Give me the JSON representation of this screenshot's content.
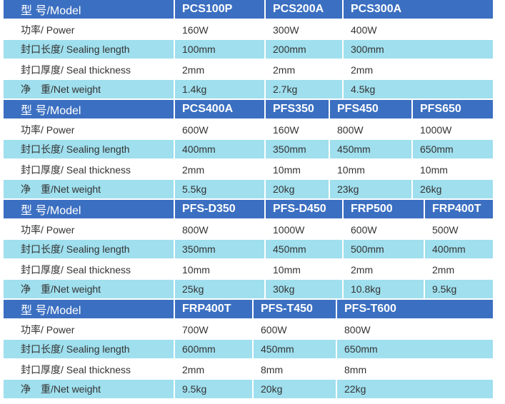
{
  "row_labels": {
    "model": "型 号/Model",
    "power": "功率/ Power",
    "sealing_length": "封口长度/ Sealing length",
    "seal_thickness": "封口厚度/ Seal thickness",
    "net_weight": "净　重/Net weight"
  },
  "colors": {
    "header": "#3b6fc1",
    "alt_row": "#9fdfee"
  },
  "blocks": [
    {
      "models": [
        "PCS100P",
        "PCS200A",
        "PCS300A",
        ""
      ],
      "power": [
        "160W",
        "300W",
        "400W",
        ""
      ],
      "sealing_length": [
        "100mm",
        "200mm",
        "300mm",
        ""
      ],
      "seal_thickness": [
        "2mm",
        "2mm",
        "2mm",
        ""
      ],
      "net_weight": [
        "1.4kg",
        "2.7kg",
        "4.5kg",
        ""
      ]
    },
    {
      "models": [
        "PCS400A",
        "PFS350",
        "PFS450",
        "PFS650"
      ],
      "power": [
        "600W",
        "160W",
        "800W",
        "1000W"
      ],
      "sealing_length": [
        "400mm",
        "350mm",
        "450mm",
        "650mm"
      ],
      "seal_thickness": [
        "2mm",
        "10mm",
        "10mm",
        "10mm"
      ],
      "net_weight": [
        "5.5kg",
        "20kg",
        "23kg",
        "26kg"
      ]
    },
    {
      "models": [
        "PFS-D350",
        "PFS-D450",
        "FRP500",
        "FRP400T"
      ],
      "power": [
        "800W",
        "1000W",
        "600W",
        "500W"
      ],
      "sealing_length": [
        "350mm",
        "450mm",
        "500mm",
        "400mm"
      ],
      "seal_thickness": [
        "10mm",
        "10mm",
        "2mm",
        "2mm"
      ],
      "net_weight": [
        "25kg",
        "30kg",
        "10.8kg",
        "9.5kg"
      ]
    },
    {
      "models": [
        "FRP400T",
        "PFS-T450",
        "PFS-T600",
        ""
      ],
      "power": [
        "700W",
        "600W",
        "800W",
        ""
      ],
      "sealing_length": [
        "600mm",
        "450mm",
        "650mm",
        ""
      ],
      "seal_thickness": [
        "2mm",
        "8mm",
        "8mm",
        ""
      ],
      "net_weight": [
        "9.5kg",
        "20kg",
        "22kg",
        ""
      ]
    }
  ]
}
